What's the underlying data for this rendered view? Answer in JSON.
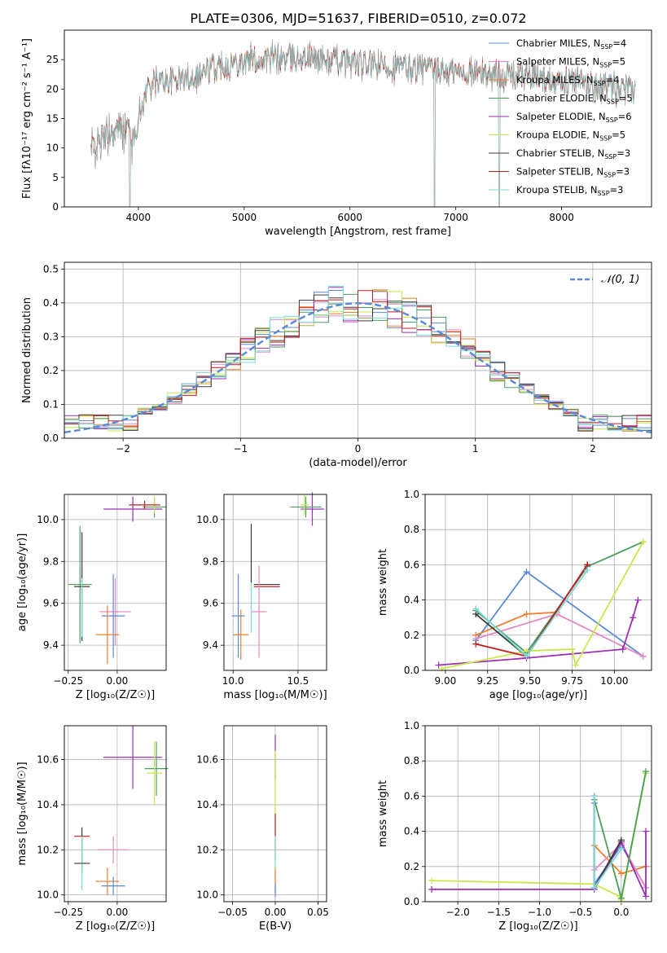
{
  "title": "PLATE=0306, MJD=51637, FIBERID=0510, z=0.072",
  "colors": {
    "c1": "#5b8bd6",
    "c2": "#ef7e2c",
    "c3": "#e589c4",
    "c4": "#9c2fb5",
    "c5": "#c8e84a",
    "c6": "#7fd9d9",
    "green": "#4a9e5e",
    "dark": "#3a3a3a",
    "red": "#c41c1c",
    "grey": "#7f7f7f"
  },
  "chart_data": [
    {
      "id": "spectrum",
      "type": "line",
      "xlabel": "wavelength [Angstrom, rest frame]",
      "ylabel": "Flux [fλ10⁻¹⁷ erg cm⁻² s⁻¹ A⁻¹]",
      "xlim": [
        3300,
        8850
      ],
      "ylim": [
        0,
        30
      ],
      "xticks": [
        "4000",
        "5000",
        "6000",
        "7000",
        "8000"
      ],
      "yticks": [
        "0",
        "5",
        "10",
        "15",
        "20",
        "25"
      ],
      "legend_position": "top-right",
      "legend": [
        {
          "label": "Chabrier MILES, N",
          "sub": "SSP",
          "tail": "=4",
          "color": "#5b8bd6"
        },
        {
          "label": "Salpeter MILES, N",
          "sub": "SSP",
          "tail": "=5",
          "color": "#e589c4"
        },
        {
          "label": "Kroupa MILES, N",
          "sub": "SSP",
          "tail": "=4",
          "color": "#ef7e2c"
        },
        {
          "label": "Chabrier ELODIE, N",
          "sub": "SSP",
          "tail": "=5",
          "color": "#4a9e5e"
        },
        {
          "label": "Salpeter ELODIE, N",
          "sub": "SSP",
          "tail": "=6",
          "color": "#9c2fb5"
        },
        {
          "label": "Kroupa ELODIE, N",
          "sub": "SSP",
          "tail": "=5",
          "color": "#c8e84a"
        },
        {
          "label": "Chabrier STELIB, N",
          "sub": "SSP",
          "tail": "=3",
          "color": "#3a3a3a"
        },
        {
          "label": "Salpeter STELIB, N",
          "sub": "SSP",
          "tail": "=3",
          "color": "#c41c1c"
        },
        {
          "label": "Kroupa STELIB, N",
          "sub": "SSP",
          "tail": "=3",
          "color": "#7fd9d9"
        }
      ],
      "continuum": [
        [
          3550,
          10
        ],
        [
          3650,
          12
        ],
        [
          3800,
          13
        ],
        [
          3900,
          14
        ],
        [
          3950,
          11
        ],
        [
          4000,
          15
        ],
        [
          4100,
          21
        ],
        [
          4300,
          21.5
        ],
        [
          4500,
          22
        ],
        [
          4700,
          23.5
        ],
        [
          4900,
          24.5
        ],
        [
          5100,
          25
        ],
        [
          5300,
          25.2
        ],
        [
          5600,
          25.3
        ],
        [
          5900,
          24.8
        ],
        [
          6100,
          24.2
        ],
        [
          6400,
          23.8
        ],
        [
          6700,
          23.3
        ],
        [
          7000,
          22.8
        ],
        [
          7300,
          22.6
        ],
        [
          7600,
          22.3
        ],
        [
          7900,
          21.8
        ],
        [
          8200,
          21
        ],
        [
          8500,
          20
        ],
        [
          8700,
          19.5
        ]
      ],
      "noise_amp": 2.2,
      "dips": [
        [
          3920,
          0
        ],
        [
          6800,
          0
        ],
        [
          7410,
          0
        ]
      ]
    },
    {
      "id": "residuals",
      "type": "histogram",
      "xlabel": "(data-model)/error",
      "ylabel": "Normed distribution",
      "xlim": [
        -2.5,
        2.5
      ],
      "ylim": [
        0,
        0.52
      ],
      "xticks": [
        "−2",
        "−1",
        "0",
        "1",
        "2"
      ],
      "yticks": [
        "0.0",
        "0.1",
        "0.2",
        "0.3",
        "0.4",
        "0.5"
      ],
      "bin_width": 0.125,
      "legend_label": "𝒩(0, 1)",
      "legend_position": "top-right",
      "grid": true
    },
    {
      "id": "z-age",
      "type": "scatter",
      "xlabel": "Z [log₁₀(Z/Z☉)]",
      "ylabel": "age  [log₁₀(age/yr)]",
      "xlim": [
        -0.27,
        0.25
      ],
      "ylim": [
        9.28,
        10.12
      ],
      "xticks": [
        -0.25,
        0.0
      ],
      "yticks": [
        9.4,
        9.6,
        9.8,
        10.0
      ],
      "xtick_labels": [
        "−0.25",
        "0.00"
      ],
      "ytick_labels": [
        "9.4",
        "9.6",
        "9.8",
        "10.0"
      ],
      "points": [
        {
          "x": -0.19,
          "y": 9.69,
          "ex": 0.06,
          "ey": 0.28,
          "color": "#4a9e5e"
        },
        {
          "x": -0.18,
          "y": 9.68,
          "ex": 0.04,
          "ey": 0.26,
          "color": "#3a3a3a"
        },
        {
          "x": -0.18,
          "y": 9.58,
          "ex": 0.0,
          "ey": 0.14,
          "color": "#7fd9d9"
        },
        {
          "x": -0.01,
          "y": 9.56,
          "ex": 0.08,
          "ey": 0.16,
          "color": "#e589c4"
        },
        {
          "x": -0.02,
          "y": 9.54,
          "ex": 0.06,
          "ey": 0.2,
          "color": "#5b8bd6"
        },
        {
          "x": -0.05,
          "y": 9.45,
          "ex": 0.06,
          "ey": 0.14,
          "color": "#ef7e2c"
        },
        {
          "x": 0.08,
          "y": 10.05,
          "ex": 0.15,
          "ey": 0.06,
          "color": "#9c2fb5"
        },
        {
          "x": 0.19,
          "y": 10.06,
          "ex": 0.06,
          "ey": 0.05,
          "color": "#4a9e5e"
        },
        {
          "x": 0.19,
          "y": 10.07,
          "ex": 0.02,
          "ey": 0.04,
          "color": "#c8e84a"
        },
        {
          "x": 0.14,
          "y": 10.07,
          "ex": 0.08,
          "ey": 0.02,
          "color": "#c41c1c"
        }
      ]
    },
    {
      "id": "mass-age",
      "type": "scatter",
      "xlabel": "mass [log₁₀(M/M☉)]",
      "ylabel": "",
      "xlim": [
        9.93,
        10.72
      ],
      "ylim": [
        9.28,
        10.12
      ],
      "xticks": [
        10.0,
        10.5
      ],
      "yticks": [
        9.4,
        9.6,
        9.8,
        10.0
      ],
      "xtick_labels": [
        "10.0",
        "10.5"
      ],
      "ytick_labels": [
        "9.4",
        "9.6",
        "9.8",
        "10.0"
      ],
      "points": [
        {
          "x": 10.14,
          "y": 9.84,
          "ex": 0.0,
          "ey": 0.14,
          "color": "#3a3a3a"
        },
        {
          "x": 10.26,
          "y": 9.69,
          "ex": 0.1,
          "ey": 0.0,
          "color": "#3a3a3a"
        },
        {
          "x": 10.26,
          "y": 9.68,
          "ex": 0.1,
          "ey": 0.0,
          "color": "#c41c1c"
        },
        {
          "x": 10.04,
          "y": 9.54,
          "ex": 0.05,
          "ey": 0.2,
          "color": "#5b8bd6"
        },
        {
          "x": 10.2,
          "y": 9.56,
          "ex": 0.06,
          "ey": 0.22,
          "color": "#e589c4"
        },
        {
          "x": 10.14,
          "y": 9.58,
          "ex": 0.0,
          "ey": 0.12,
          "color": "#7fd9d9"
        },
        {
          "x": 10.06,
          "y": 9.45,
          "ex": 0.06,
          "ey": 0.12,
          "color": "#ef7e2c"
        },
        {
          "x": 10.61,
          "y": 10.05,
          "ex": 0.09,
          "ey": 0.08,
          "color": "#9c2fb5"
        },
        {
          "x": 10.56,
          "y": 10.06,
          "ex": 0.12,
          "ey": 0.05,
          "color": "#4a9e5e"
        },
        {
          "x": 10.55,
          "y": 10.07,
          "ex": 0.03,
          "ey": 0.05,
          "color": "#c8e84a"
        }
      ]
    },
    {
      "id": "age-weight",
      "type": "line",
      "xlabel": "age  [log₁₀(age/yr)]",
      "ylabel": "mass weight",
      "xlim": [
        8.88,
        10.22
      ],
      "ylim": [
        0,
        1.0
      ],
      "xticks": [
        9.0,
        9.25,
        9.5,
        9.75,
        10.0
      ],
      "yticks": [
        0.0,
        0.2,
        0.4,
        0.6,
        0.8,
        1.0
      ],
      "xtick_labels": [
        "9.00",
        "9.25",
        "9.50",
        "9.75",
        "10.00"
      ],
      "ytick_labels": [
        "0.0",
        "0.2",
        "0.4",
        "0.6",
        "0.8",
        "1.0"
      ],
      "grid": true,
      "series": [
        {
          "color": "#5b8bd6",
          "x": [
            9.18,
            9.48,
            10.17
          ],
          "y": [
            0.17,
            0.56,
            0.08
          ]
        },
        {
          "color": "#ef7e2c",
          "x": [
            9.18,
            9.48,
            9.66
          ],
          "y": [
            0.2,
            0.32,
            0.33
          ]
        },
        {
          "color": "#e589c4",
          "x": [
            9.18,
            9.66,
            10.17
          ],
          "y": [
            0.18,
            0.32,
            0.08
          ]
        },
        {
          "color": "#9c2fb5",
          "x": [
            8.96,
            9.48,
            10.05,
            10.11,
            10.14
          ],
          "y": [
            0.03,
            0.07,
            0.12,
            0.3,
            0.4
          ]
        },
        {
          "color": "#4a9e5e",
          "x": [
            9.18,
            9.48,
            9.84,
            10.17
          ],
          "y": [
            0.34,
            0.1,
            0.59,
            0.73
          ]
        },
        {
          "color": "#c8e84a",
          "x": [
            8.98,
            9.48,
            9.75,
            9.77,
            10.17
          ],
          "y": [
            0.01,
            0.11,
            0.12,
            0.03,
            0.73
          ]
        },
        {
          "color": "#3a3a3a",
          "x": [
            9.18,
            9.48,
            9.84
          ],
          "y": [
            0.32,
            0.08,
            0.6
          ]
        },
        {
          "color": "#c41c1c",
          "x": [
            9.18,
            9.48,
            9.84
          ],
          "y": [
            0.15,
            0.08,
            0.6
          ]
        },
        {
          "color": "#7fd9d9",
          "x": [
            9.18,
            9.48,
            9.84
          ],
          "y": [
            0.35,
            0.08,
            0.57
          ]
        }
      ]
    },
    {
      "id": "z-mass",
      "type": "scatter",
      "xlabel": "Z [log₁₀(Z/Z☉)]",
      "ylabel": "mass [log₁₀(M/M☉)]",
      "xlim": [
        -0.27,
        0.25
      ],
      "ylim": [
        9.97,
        10.75
      ],
      "xticks": [
        -0.25,
        0.0
      ],
      "yticks": [
        10.0,
        10.2,
        10.4,
        10.6
      ],
      "xtick_labels": [
        "−0.25",
        "0.00"
      ],
      "ytick_labels": [
        "10.0",
        "10.2",
        "10.4",
        "10.6"
      ],
      "points": [
        {
          "x": -0.18,
          "y": 10.26,
          "ex": 0.04,
          "ey": 0.0,
          "color": "#c41c1c"
        },
        {
          "x": -0.18,
          "y": 10.2,
          "ex": 0.0,
          "ey": 0.1,
          "color": "#3a3a3a"
        },
        {
          "x": -0.18,
          "y": 10.14,
          "ex": 0.04,
          "ey": 0.12,
          "color": "#7fd9d9"
        },
        {
          "x": -0.18,
          "y": 10.14,
          "ex": 0.04,
          "ey": 0.0,
          "color": "#3a3a3a"
        },
        {
          "x": -0.02,
          "y": 10.2,
          "ex": 0.08,
          "ey": 0.06,
          "color": "#e589c4"
        },
        {
          "x": -0.05,
          "y": 10.06,
          "ex": 0.06,
          "ey": 0.06,
          "color": "#ef7e2c"
        },
        {
          "x": -0.02,
          "y": 10.04,
          "ex": 0.06,
          "ey": 0.04,
          "color": "#5b8bd6"
        },
        {
          "x": 0.08,
          "y": 10.61,
          "ex": 0.15,
          "ey": 0.14,
          "color": "#9c2fb5"
        },
        {
          "x": 0.2,
          "y": 10.56,
          "ex": 0.06,
          "ey": 0.12,
          "color": "#4a9e5e"
        },
        {
          "x": 0.19,
          "y": 10.54,
          "ex": 0.04,
          "ey": 0.14,
          "color": "#c8e84a"
        }
      ]
    },
    {
      "id": "ebv-mass",
      "type": "scatter",
      "xlabel": "E(B-V)",
      "ylabel": "",
      "xlim": [
        -0.06,
        0.06
      ],
      "ylim": [
        9.97,
        10.75
      ],
      "xticks": [
        -0.05,
        0.0,
        0.05
      ],
      "yticks": [
        10.0,
        10.2,
        10.4,
        10.6
      ],
      "xtick_labels": [
        "−0.05",
        "0.00",
        "0.05"
      ],
      "ytick_labels": [
        "10.0",
        "10.2",
        "10.4",
        "10.6"
      ],
      "points": [
        {
          "x": 0.0,
          "y": 10.61,
          "ex": 0.0,
          "ey": 0.1,
          "color": "#9c2fb5"
        },
        {
          "x": 0.0,
          "y": 10.5,
          "ex": 0.0,
          "ey": 0.14,
          "color": "#c8e84a"
        },
        {
          "x": 0.0,
          "y": 10.26,
          "ex": 0.0,
          "ey": 0.1,
          "color": "#c41c1c"
        },
        {
          "x": 0.0,
          "y": 10.14,
          "ex": 0.0,
          "ey": 0.12,
          "color": "#7fd9d9"
        },
        {
          "x": 0.0,
          "y": 10.06,
          "ex": 0.0,
          "ey": 0.06,
          "color": "#ef7e2c"
        },
        {
          "x": 0.0,
          "y": 10.02,
          "ex": 0.0,
          "ey": 0.03,
          "color": "#5b8bd6"
        }
      ]
    },
    {
      "id": "z-weight",
      "type": "line",
      "xlabel": "Z [log₁₀(Z/Z☉)]",
      "ylabel": "mass weight",
      "xlim": [
        -2.4,
        0.37
      ],
      "ylim": [
        0,
        1.0
      ],
      "xticks": [
        -2.0,
        -1.5,
        -1.0,
        -0.5,
        0.0
      ],
      "yticks": [
        0.0,
        0.2,
        0.4,
        0.6,
        0.8,
        1.0
      ],
      "xtick_labels": [
        "−2.0",
        "−1.5",
        "−1.0",
        "−0.5",
        "0.0"
      ],
      "ytick_labels": [
        "0.0",
        "0.2",
        "0.4",
        "0.6",
        "0.8",
        "1.0"
      ],
      "grid": true,
      "series": [
        {
          "color": "#5b8bd6",
          "x": [
            -0.33,
            -0.33,
            0.0,
            0.3
          ],
          "y": [
            0.56,
            0.1,
            0.32,
            0.08
          ]
        },
        {
          "color": "#ef7e2c",
          "x": [
            -0.33,
            0.0,
            0.3
          ],
          "y": [
            0.32,
            0.16,
            0.2
          ]
        },
        {
          "color": "#e589c4",
          "x": [
            -0.33,
            0.0,
            0.3
          ],
          "y": [
            0.18,
            0.33,
            0.08
          ]
        },
        {
          "color": "#9c2fb5",
          "x": [
            -2.32,
            -0.33,
            0.0,
            0.3,
            0.3
          ],
          "y": [
            0.07,
            0.07,
            0.34,
            0.03,
            0.4
          ]
        },
        {
          "color": "#c8e84a",
          "x": [
            -2.32,
            -0.33,
            -0.02,
            0.0,
            0.3
          ],
          "y": [
            0.12,
            0.1,
            0.03,
            0.01,
            0.73
          ]
        },
        {
          "color": "#4a9e5e",
          "x": [
            -0.33,
            0.0,
            0.3
          ],
          "y": [
            0.58,
            0.02,
            0.74
          ]
        },
        {
          "color": "#3a3a3a",
          "x": [
            -0.33,
            -0.33,
            0.0
          ],
          "y": [
            0.6,
            0.08,
            0.35
          ]
        },
        {
          "color": "#7fd9d9",
          "x": [
            -0.33,
            -0.33,
            0.0
          ],
          "y": [
            0.6,
            0.08,
            0.3
          ]
        }
      ]
    }
  ]
}
